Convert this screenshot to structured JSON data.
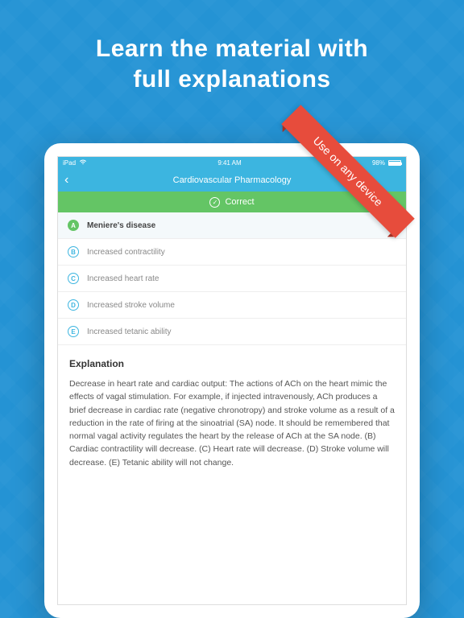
{
  "hero": {
    "line1": "Learn the material with",
    "line2": "full explanations"
  },
  "ribbon": {
    "text": "Use on any device",
    "bg": "#e74c3c"
  },
  "status": {
    "carrier": "iPad",
    "time": "9:41 AM",
    "battery_pct": "98%"
  },
  "nav": {
    "title": "Cardiovascular Pharmacology"
  },
  "correct": {
    "label": "Correct",
    "bg": "#64c565"
  },
  "answers": [
    {
      "letter": "A",
      "text": "Meniere's disease",
      "selected": true,
      "correct": true
    },
    {
      "letter": "B",
      "text": "Increased contractility",
      "selected": false,
      "correct": false
    },
    {
      "letter": "C",
      "text": "Increased heart rate",
      "selected": false,
      "correct": false
    },
    {
      "letter": "D",
      "text": "Increased stroke volume",
      "selected": false,
      "correct": false
    },
    {
      "letter": "E",
      "text": "Increased tetanic ability",
      "selected": false,
      "correct": false
    }
  ],
  "explanation": {
    "title": "Explanation",
    "body": "Decrease in heart rate and cardiac output: The actions of ACh on the heart mimic the effects of vagal stimulation. For example, if injected intravenously, ACh produces a brief decrease in cardiac rate (negative chronotropy) and stroke volume as a result of a reduction in the rate of firing at the sinoatrial (SA) node. It should be remembered that normal vagal activity regulates the heart by the release of ACh at the SA node. (B) Cardiac contractility will decrease. (C) Heart rate will decrease. (D) Stroke volume will decrease. (E) Tetanic ability will not change."
  },
  "colors": {
    "bg": "#2493d4",
    "header": "#3cb5e0",
    "accent": "#3cb5e0"
  }
}
